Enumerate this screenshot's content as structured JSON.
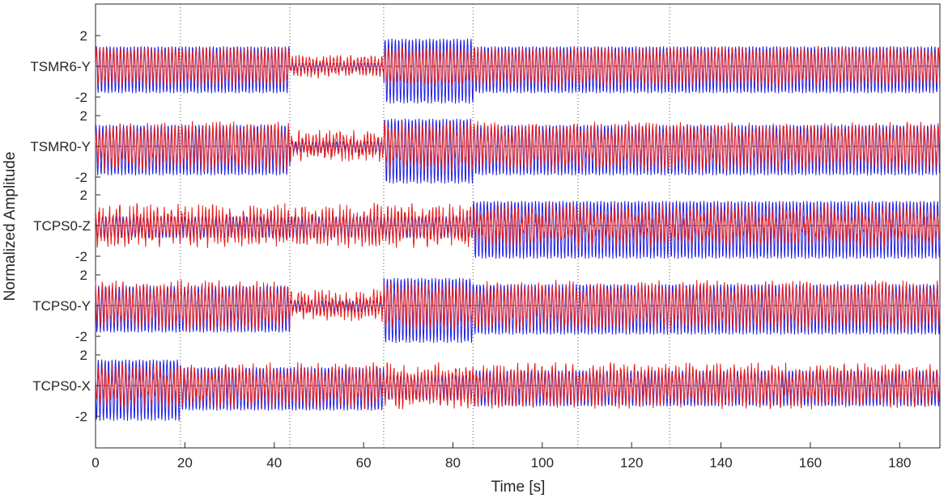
{
  "chart_data": {
    "type": "line",
    "title": "",
    "xlabel": "Time [s]",
    "ylabel": "Normalized Amplitude",
    "xlim": [
      0,
      189
    ],
    "xticks": [
      0,
      20,
      40,
      60,
      80,
      100,
      120,
      140,
      160,
      180
    ],
    "xtick_labels": [
      "0",
      "20",
      "40",
      "60",
      "80",
      "100",
      "120",
      "140",
      "160",
      "180"
    ],
    "per_channel_ytick_labels": [
      "2",
      "-2"
    ],
    "per_channel_ylim": [
      -3.5,
      3.5
    ],
    "vertical_markers": [
      19,
      43.5,
      64.5,
      84.5,
      108,
      128.5
    ],
    "grid": false,
    "legend": "none",
    "channels": [
      {
        "label": "TSMR6-Y",
        "blue_segments": [
          [
            0,
            19,
            1.3
          ],
          [
            19,
            43.5,
            1.3
          ],
          [
            43.5,
            64.5,
            0.2
          ],
          [
            64.5,
            84.5,
            1.8
          ],
          [
            84.5,
            189,
            1.3
          ]
        ],
        "red_amp": 1.1,
        "red_noise": 0.25
      },
      {
        "label": "TSMR0-Y",
        "blue_segments": [
          [
            0,
            19,
            1.4
          ],
          [
            19,
            43.5,
            1.4
          ],
          [
            43.5,
            64.5,
            0.3
          ],
          [
            64.5,
            84.5,
            1.8
          ],
          [
            84.5,
            189,
            1.4
          ]
        ],
        "red_amp": 1.2,
        "red_noise": 0.5
      },
      {
        "label": "TCPS0-Z",
        "blue_segments": [
          [
            0,
            19,
            0.6
          ],
          [
            19,
            43.5,
            0.6
          ],
          [
            43.5,
            64.5,
            0.6
          ],
          [
            64.5,
            84.5,
            0.6
          ],
          [
            84.5,
            189,
            1.6
          ]
        ],
        "red_amp": 0.9,
        "red_noise": 0.6
      },
      {
        "label": "TCPS0-Y",
        "blue_segments": [
          [
            0,
            19,
            1.3
          ],
          [
            19,
            43.5,
            1.3
          ],
          [
            43.5,
            64.5,
            0.3
          ],
          [
            64.5,
            84.5,
            1.8
          ],
          [
            84.5,
            189,
            1.4
          ]
        ],
        "red_amp": 1.2,
        "red_noise": 0.5
      },
      {
        "label": "TCPS0-X",
        "blue_segments": [
          [
            0,
            19,
            1.7
          ],
          [
            19,
            43.5,
            1.2
          ],
          [
            43.5,
            64.5,
            1.2
          ],
          [
            64.5,
            84.5,
            0.7
          ],
          [
            84.5,
            189,
            1.0
          ]
        ],
        "red_amp": 1.0,
        "red_noise": 0.55
      }
    ],
    "series": [
      {
        "color": "#1f1fe0"
      },
      {
        "color": "#e61e1e"
      }
    ],
    "baseline_color": "#6a3030"
  }
}
